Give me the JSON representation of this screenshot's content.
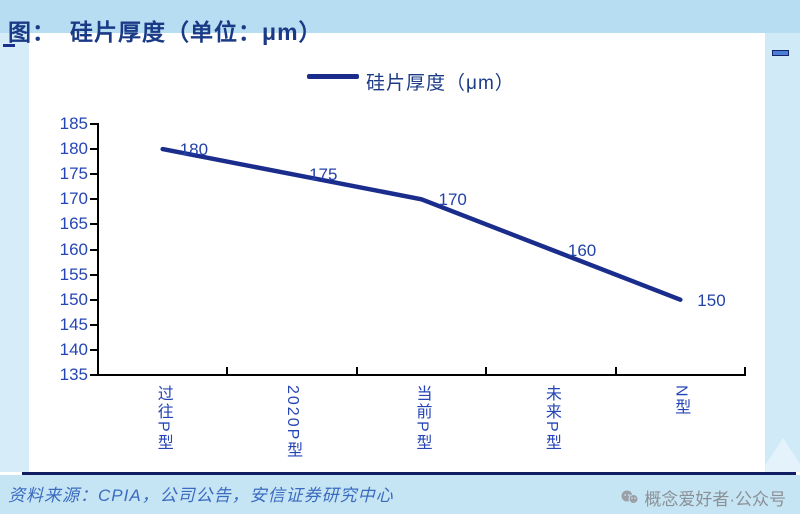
{
  "header": {
    "title_prefix": "图：",
    "title": "硅片厚度（单位：μm）"
  },
  "legend": {
    "label": "硅片厚度（μm）"
  },
  "chart_data": {
    "type": "line",
    "title": "硅片厚度（单位：μm）",
    "legend_entries": [
      "硅片厚度（μm）"
    ],
    "legend_position": "top",
    "categories": [
      "过往P型",
      "2020P型",
      "当前P型",
      "未来P型",
      "N型"
    ],
    "values": [
      180,
      175,
      170,
      160,
      150
    ],
    "data_labels": [
      "180",
      "175",
      "170",
      "160",
      "150"
    ],
    "ylim": [
      135,
      185
    ],
    "ytick_step": 5,
    "grid": false,
    "colors": {
      "line": "#1b2d8c",
      "tick_label": "#2545b5",
      "data_label": "#2342a8",
      "axis": "#000000"
    }
  },
  "footer": {
    "source": "资料来源：CPIA，公司公告，安信证券研究中心",
    "watermark": "概念爱好者·公众号"
  }
}
